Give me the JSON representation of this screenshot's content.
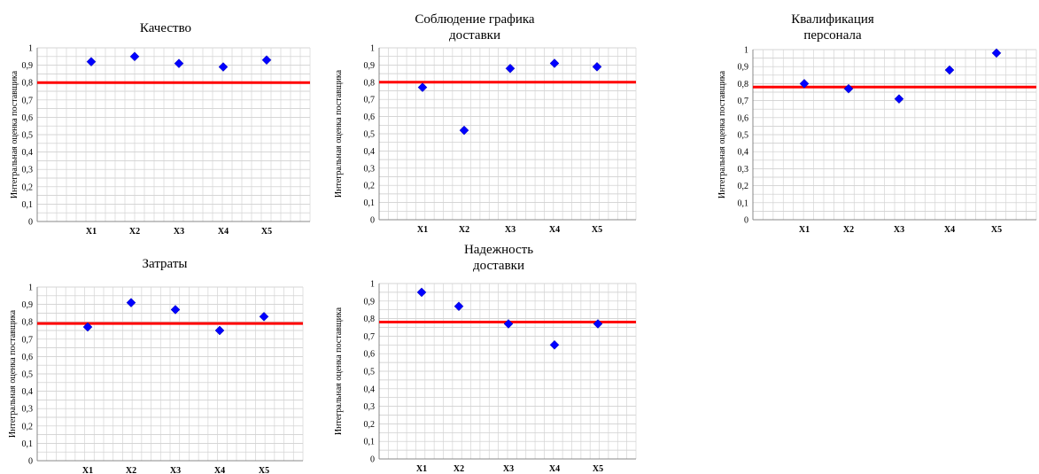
{
  "chart_data": [
    {
      "type": "scatter",
      "title": [
        "Качество"
      ],
      "ylabel": "Интегральная оценка поставщика",
      "categories": [
        "X1",
        "X2",
        "X3",
        "X4",
        "X5"
      ],
      "values": [
        0.92,
        0.95,
        0.91,
        0.89,
        0.93
      ],
      "threshold": 0.8,
      "ylim": [
        0,
        1
      ],
      "yticks": [
        "0",
        "0,1",
        "0,2",
        "0,3",
        "0,4",
        "0,5",
        "0,6",
        "0,7",
        "0,8",
        "0,9",
        "1"
      ],
      "grid": true,
      "marker_color": "#0000ff",
      "line_color": "#ff0000"
    },
    {
      "type": "scatter",
      "title": [
        "Соблюдение графика",
        "доставки"
      ],
      "ylabel": "Интегральная оценка поставщика",
      "categories": [
        "X1",
        "X2",
        "X3",
        "X4",
        "X5"
      ],
      "values": [
        0.77,
        0.52,
        0.88,
        0.91,
        0.89
      ],
      "threshold": 0.8,
      "ylim": [
        0,
        1
      ],
      "yticks": [
        "0",
        "0,1",
        "0,2",
        "0,3",
        "0,4",
        "0,5",
        "0,6",
        "0,7",
        "0,8",
        "0,9",
        "1"
      ],
      "grid": true,
      "marker_color": "#0000ff",
      "line_color": "#ff0000"
    },
    {
      "type": "scatter",
      "title": [
        "Квалификация",
        "персонала"
      ],
      "ylabel": "Интегральная оценка поставщика",
      "categories": [
        "X1",
        "X2",
        "X3",
        "X4",
        "X5"
      ],
      "values": [
        0.8,
        0.77,
        0.71,
        0.88,
        0.98
      ],
      "threshold": 0.78,
      "ylim": [
        0,
        1
      ],
      "yticks": [
        "0",
        "0,1",
        "0,2",
        "0,3",
        "0,4",
        "0,5",
        "0,6",
        "0,7",
        "0,8",
        "0,9",
        "1"
      ],
      "grid": true,
      "marker_color": "#0000ff",
      "line_color": "#ff0000"
    },
    {
      "type": "scatter",
      "title": [
        "Затраты"
      ],
      "ylabel": "Интегральная оценка поставщика",
      "categories": [
        "X1",
        "X2",
        "X3",
        "X4",
        "X5"
      ],
      "values": [
        0.77,
        0.91,
        0.87,
        0.75,
        0.83
      ],
      "threshold": 0.79,
      "ylim": [
        0,
        1
      ],
      "yticks": [
        "0",
        "0,1",
        "0,2",
        "0,3",
        "0,4",
        "0,5",
        "0,6",
        "0,7",
        "0,8",
        "0,9",
        "1"
      ],
      "grid": true,
      "marker_color": "#0000ff",
      "line_color": "#ff0000"
    },
    {
      "type": "scatter",
      "title": [
        "Надежность",
        "доставки"
      ],
      "ylabel": "Интегральная оценка поставщика",
      "categories": [
        "X1",
        "X2",
        "X3",
        "X4",
        "X5"
      ],
      "values": [
        0.95,
        0.87,
        0.77,
        0.65,
        0.77
      ],
      "threshold": 0.78,
      "ylim": [
        0,
        1
      ],
      "yticks": [
        "0",
        "0,1",
        "0,2",
        "0,3",
        "0,4",
        "0,5",
        "0,6",
        "0,7",
        "0,8",
        "0,9",
        "1"
      ],
      "grid": true,
      "marker_color": "#0000ff",
      "line_color": "#ff0000"
    }
  ]
}
